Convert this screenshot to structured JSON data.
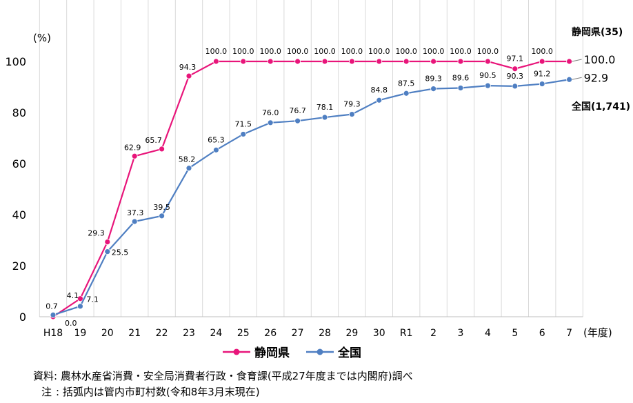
{
  "chart_data": {
    "type": "line",
    "ylabel": "(%)",
    "xlabel": "(年度)",
    "ylim": [
      0,
      100
    ],
    "yticks": [
      0,
      20,
      40,
      60,
      80,
      100
    ],
    "categories": [
      "H18",
      "19",
      "20",
      "21",
      "22",
      "23",
      "24",
      "25",
      "26",
      "27",
      "28",
      "29",
      "30",
      "R1",
      "2",
      "3",
      "4",
      "5",
      "6",
      "7"
    ],
    "grid_x": true,
    "legend_position": "bottom-center",
    "series": [
      {
        "name": "静岡県",
        "color": "#e8157a",
        "end_label": "100.0",
        "side_label": "静岡県(35)",
        "values": [
          0.0,
          7.1,
          29.3,
          62.9,
          65.7,
          94.3,
          100.0,
          100.0,
          100.0,
          100.0,
          100.0,
          100.0,
          100.0,
          100.0,
          100.0,
          100.0,
          100.0,
          97.1,
          100.0,
          100.0
        ],
        "data_labels": [
          "0.0",
          "7.1",
          "29.3",
          "62.9",
          "65.7",
          "94.3",
          "100.0",
          "100.0",
          "100.0",
          "100.0",
          "100.0",
          "100.0",
          "100.0",
          "100.0",
          "100.0",
          "100.0",
          "100.0",
          "97.1",
          "100.0",
          ""
        ]
      },
      {
        "name": "全国",
        "color": "#4f7fc2",
        "end_label": "92.9",
        "side_label": "全国(1,741)",
        "values": [
          0.7,
          4.1,
          25.5,
          37.3,
          39.5,
          58.2,
          65.3,
          71.5,
          76.0,
          76.7,
          78.1,
          79.3,
          84.8,
          87.5,
          89.3,
          89.6,
          90.5,
          90.3,
          91.2,
          92.9
        ],
        "data_labels": [
          "0.7",
          "4.1",
          "25.5",
          "37.3",
          "39.5",
          "58.2",
          "65.3",
          "71.5",
          "76.0",
          "76.7",
          "78.1",
          "79.3",
          "84.8",
          "87.5",
          "89.3",
          "89.6",
          "90.5",
          "90.3",
          "91.2",
          ""
        ]
      }
    ]
  },
  "notes": {
    "source": "資料: 農林水産省消費・安全局消費者行政・食育課(平成27年度までは内閣府)調べ",
    "note_label": "注",
    "note": ": 括弧内は管内市町村数(令和8年3月末現在)"
  }
}
